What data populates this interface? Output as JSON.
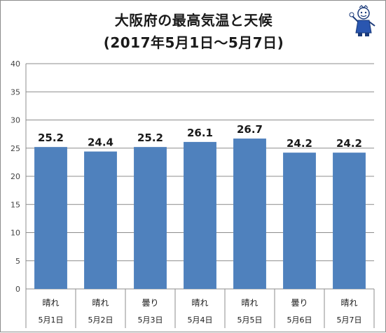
{
  "header": {
    "title_line1": "大阪府の最高気温と天候",
    "title_line2": "(2017年5月1日～5月7日)"
  },
  "colors": {
    "bar": "#4f81bd",
    "grid": "#8c8c8c",
    "axis_text": "#444444",
    "label_text": "#1a1a1a"
  },
  "chart_data": {
    "type": "bar",
    "title": "大阪府の最高気温と天候",
    "subtitle": "(2017年5月1日～5月7日)",
    "categories": [
      "5月1日",
      "5月2日",
      "5月3日",
      "5月4日",
      "5月5日",
      "5月6日",
      "5月7日"
    ],
    "weather": [
      "晴れ",
      "晴れ",
      "曇り",
      "晴れ",
      "晴れ",
      "曇り",
      "晴れ"
    ],
    "values": [
      25.2,
      24.4,
      25.2,
      26.1,
      26.7,
      24.2,
      24.2
    ],
    "value_labels": [
      "25.2",
      "24.4",
      "25.2",
      "26.1",
      "26.7",
      "24.2",
      "24.2"
    ],
    "yticks": [
      0,
      5,
      10,
      15,
      20,
      25,
      30,
      35,
      40
    ],
    "ylim": [
      0,
      40
    ],
    "grid": true,
    "legend": "none",
    "xlabel": "",
    "ylabel": ""
  }
}
